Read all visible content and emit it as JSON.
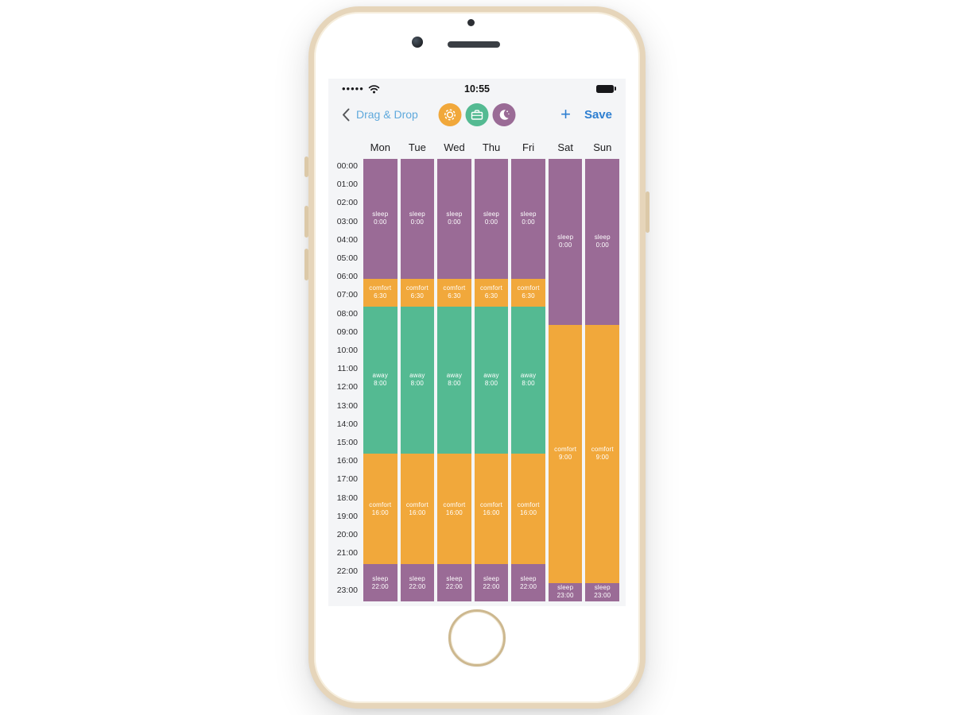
{
  "status_bar": {
    "time": "10:55",
    "signal_icon": "•••••"
  },
  "nav_bar": {
    "back_label": "Drag & Drop",
    "plus_label": "+",
    "save_label": "Save",
    "mode_buttons": [
      {
        "mode": "comfort",
        "icon": "sun-icon"
      },
      {
        "mode": "away",
        "icon": "briefcase-icon"
      },
      {
        "mode": "sleep",
        "icon": "moon-stars-icon"
      }
    ]
  },
  "colors": {
    "sleep": "#9a6b96",
    "comfort": "#f1a83b",
    "away": "#54ba92",
    "accent_blue": "#2e7fd1",
    "back_link_blue": "#5fa9dc",
    "screen_bg": "#f4f5f7"
  },
  "schedule": {
    "days": [
      "Mon",
      "Tue",
      "Wed",
      "Thu",
      "Fri",
      "Sat",
      "Sun"
    ],
    "hours": [
      "00:00",
      "01:00",
      "02:00",
      "03:00",
      "04:00",
      "05:00",
      "06:00",
      "07:00",
      "08:00",
      "09:00",
      "10:00",
      "11:00",
      "12:00",
      "13:00",
      "14:00",
      "15:00",
      "16:00",
      "17:00",
      "18:00",
      "19:00",
      "20:00",
      "21:00",
      "22:00",
      "23:00"
    ],
    "mode_colors": {
      "sleep": "#9a6b96",
      "comfort": "#f1a83b",
      "away": "#54ba92"
    },
    "columns": [
      {
        "day": "Mon",
        "blocks": [
          {
            "mode": "sleep",
            "time": "0:00",
            "start": 0,
            "end": 6.5
          },
          {
            "mode": "comfort",
            "time": "6:30",
            "start": 6.5,
            "end": 8
          },
          {
            "mode": "away",
            "time": "8:00",
            "start": 8,
            "end": 16
          },
          {
            "mode": "comfort",
            "time": "16:00",
            "start": 16,
            "end": 22
          },
          {
            "mode": "sleep",
            "time": "22:00",
            "start": 22,
            "end": 24
          }
        ]
      },
      {
        "day": "Tue",
        "blocks": [
          {
            "mode": "sleep",
            "time": "0:00",
            "start": 0,
            "end": 6.5
          },
          {
            "mode": "comfort",
            "time": "6:30",
            "start": 6.5,
            "end": 8
          },
          {
            "mode": "away",
            "time": "8:00",
            "start": 8,
            "end": 16
          },
          {
            "mode": "comfort",
            "time": "16:00",
            "start": 16,
            "end": 22
          },
          {
            "mode": "sleep",
            "time": "22:00",
            "start": 22,
            "end": 24
          }
        ]
      },
      {
        "day": "Wed",
        "blocks": [
          {
            "mode": "sleep",
            "time": "0:00",
            "start": 0,
            "end": 6.5
          },
          {
            "mode": "comfort",
            "time": "6:30",
            "start": 6.5,
            "end": 8
          },
          {
            "mode": "away",
            "time": "8:00",
            "start": 8,
            "end": 16
          },
          {
            "mode": "comfort",
            "time": "16:00",
            "start": 16,
            "end": 22
          },
          {
            "mode": "sleep",
            "time": "22:00",
            "start": 22,
            "end": 24
          }
        ]
      },
      {
        "day": "Thu",
        "blocks": [
          {
            "mode": "sleep",
            "time": "0:00",
            "start": 0,
            "end": 6.5
          },
          {
            "mode": "comfort",
            "time": "6:30",
            "start": 6.5,
            "end": 8
          },
          {
            "mode": "away",
            "time": "8:00",
            "start": 8,
            "end": 16
          },
          {
            "mode": "comfort",
            "time": "16:00",
            "start": 16,
            "end": 22
          },
          {
            "mode": "sleep",
            "time": "22:00",
            "start": 22,
            "end": 24
          }
        ]
      },
      {
        "day": "Fri",
        "blocks": [
          {
            "mode": "sleep",
            "time": "0:00",
            "start": 0,
            "end": 6.5
          },
          {
            "mode": "comfort",
            "time": "6:30",
            "start": 6.5,
            "end": 8
          },
          {
            "mode": "away",
            "time": "8:00",
            "start": 8,
            "end": 16
          },
          {
            "mode": "comfort",
            "time": "16:00",
            "start": 16,
            "end": 22
          },
          {
            "mode": "sleep",
            "time": "22:00",
            "start": 22,
            "end": 24
          }
        ]
      },
      {
        "day": "Sat",
        "blocks": [
          {
            "mode": "sleep",
            "time": "0:00",
            "start": 0,
            "end": 9
          },
          {
            "mode": "comfort",
            "time": "9:00",
            "start": 9,
            "end": 23
          },
          {
            "mode": "sleep",
            "time": "23:00",
            "start": 23,
            "end": 24
          }
        ]
      },
      {
        "day": "Sun",
        "blocks": [
          {
            "mode": "sleep",
            "time": "0:00",
            "start": 0,
            "end": 9
          },
          {
            "mode": "comfort",
            "time": "9:00",
            "start": 9,
            "end": 23
          },
          {
            "mode": "sleep",
            "time": "23:00",
            "start": 23,
            "end": 24
          }
        ]
      }
    ]
  }
}
